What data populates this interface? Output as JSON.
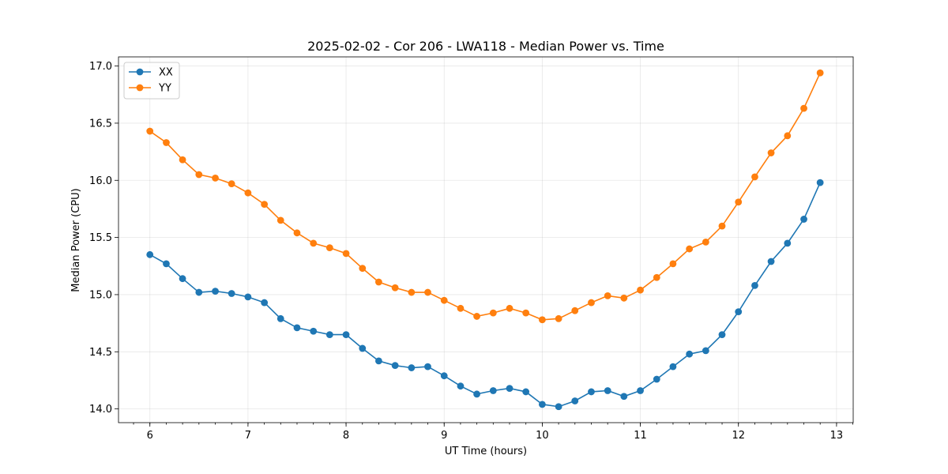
{
  "chart_data": {
    "type": "line",
    "title": "2025-02-02 - Cor 206 - LWA118 - Median Power vs. Time",
    "xlabel": "UT Time (hours)",
    "ylabel": "Median Power (CPU)",
    "xlim": [
      5.68,
      13.17
    ],
    "ylim": [
      13.88,
      17.08
    ],
    "xticks": [
      6,
      7,
      8,
      9,
      10,
      11,
      12,
      13
    ],
    "xtick_labels": [
      "6",
      "7",
      "8",
      "9",
      "10",
      "11",
      "12",
      "13"
    ],
    "yticks": [
      14.0,
      14.5,
      15.0,
      15.5,
      16.0,
      16.5,
      17.0
    ],
    "ytick_labels": [
      "14.0",
      "14.5",
      "15.0",
      "15.5",
      "16.0",
      "16.5",
      "17.0"
    ],
    "grid": true,
    "legend_position": "upper left",
    "x": [
      6.0,
      6.167,
      6.333,
      6.5,
      6.667,
      6.833,
      7.0,
      7.167,
      7.333,
      7.5,
      7.667,
      7.833,
      8.0,
      8.167,
      8.333,
      8.5,
      8.667,
      8.833,
      9.0,
      9.167,
      9.333,
      9.5,
      9.667,
      9.833,
      10.0,
      10.167,
      10.333,
      10.5,
      10.667,
      10.833,
      11.0,
      11.167,
      11.333,
      11.5,
      11.667,
      11.833,
      12.0,
      12.167,
      12.333,
      12.5,
      12.667,
      12.833
    ],
    "series": [
      {
        "name": "XX",
        "color": "#1f77b4",
        "values": [
          15.35,
          15.27,
          15.14,
          15.02,
          15.03,
          15.01,
          14.98,
          14.93,
          14.79,
          14.71,
          14.68,
          14.65,
          14.65,
          14.53,
          14.42,
          14.38,
          14.36,
          14.37,
          14.29,
          14.2,
          14.13,
          14.16,
          14.18,
          14.15,
          14.04,
          14.02,
          14.07,
          14.15,
          14.16,
          14.11,
          14.16,
          14.26,
          14.37,
          14.48,
          14.51,
          14.65,
          14.85,
          15.08,
          15.29,
          15.45,
          15.66,
          15.98
        ]
      },
      {
        "name": "YY",
        "color": "#ff7f0e",
        "values": [
          16.43,
          16.33,
          16.18,
          16.05,
          16.02,
          15.97,
          15.89,
          15.79,
          15.65,
          15.54,
          15.45,
          15.41,
          15.36,
          15.23,
          15.11,
          15.06,
          15.02,
          15.02,
          14.95,
          14.88,
          14.81,
          14.84,
          14.88,
          14.84,
          14.78,
          14.79,
          14.86,
          14.93,
          14.99,
          14.97,
          15.04,
          15.15,
          15.27,
          15.4,
          15.46,
          15.6,
          15.81,
          16.03,
          16.24,
          16.39,
          16.63,
          16.94
        ]
      }
    ]
  }
}
